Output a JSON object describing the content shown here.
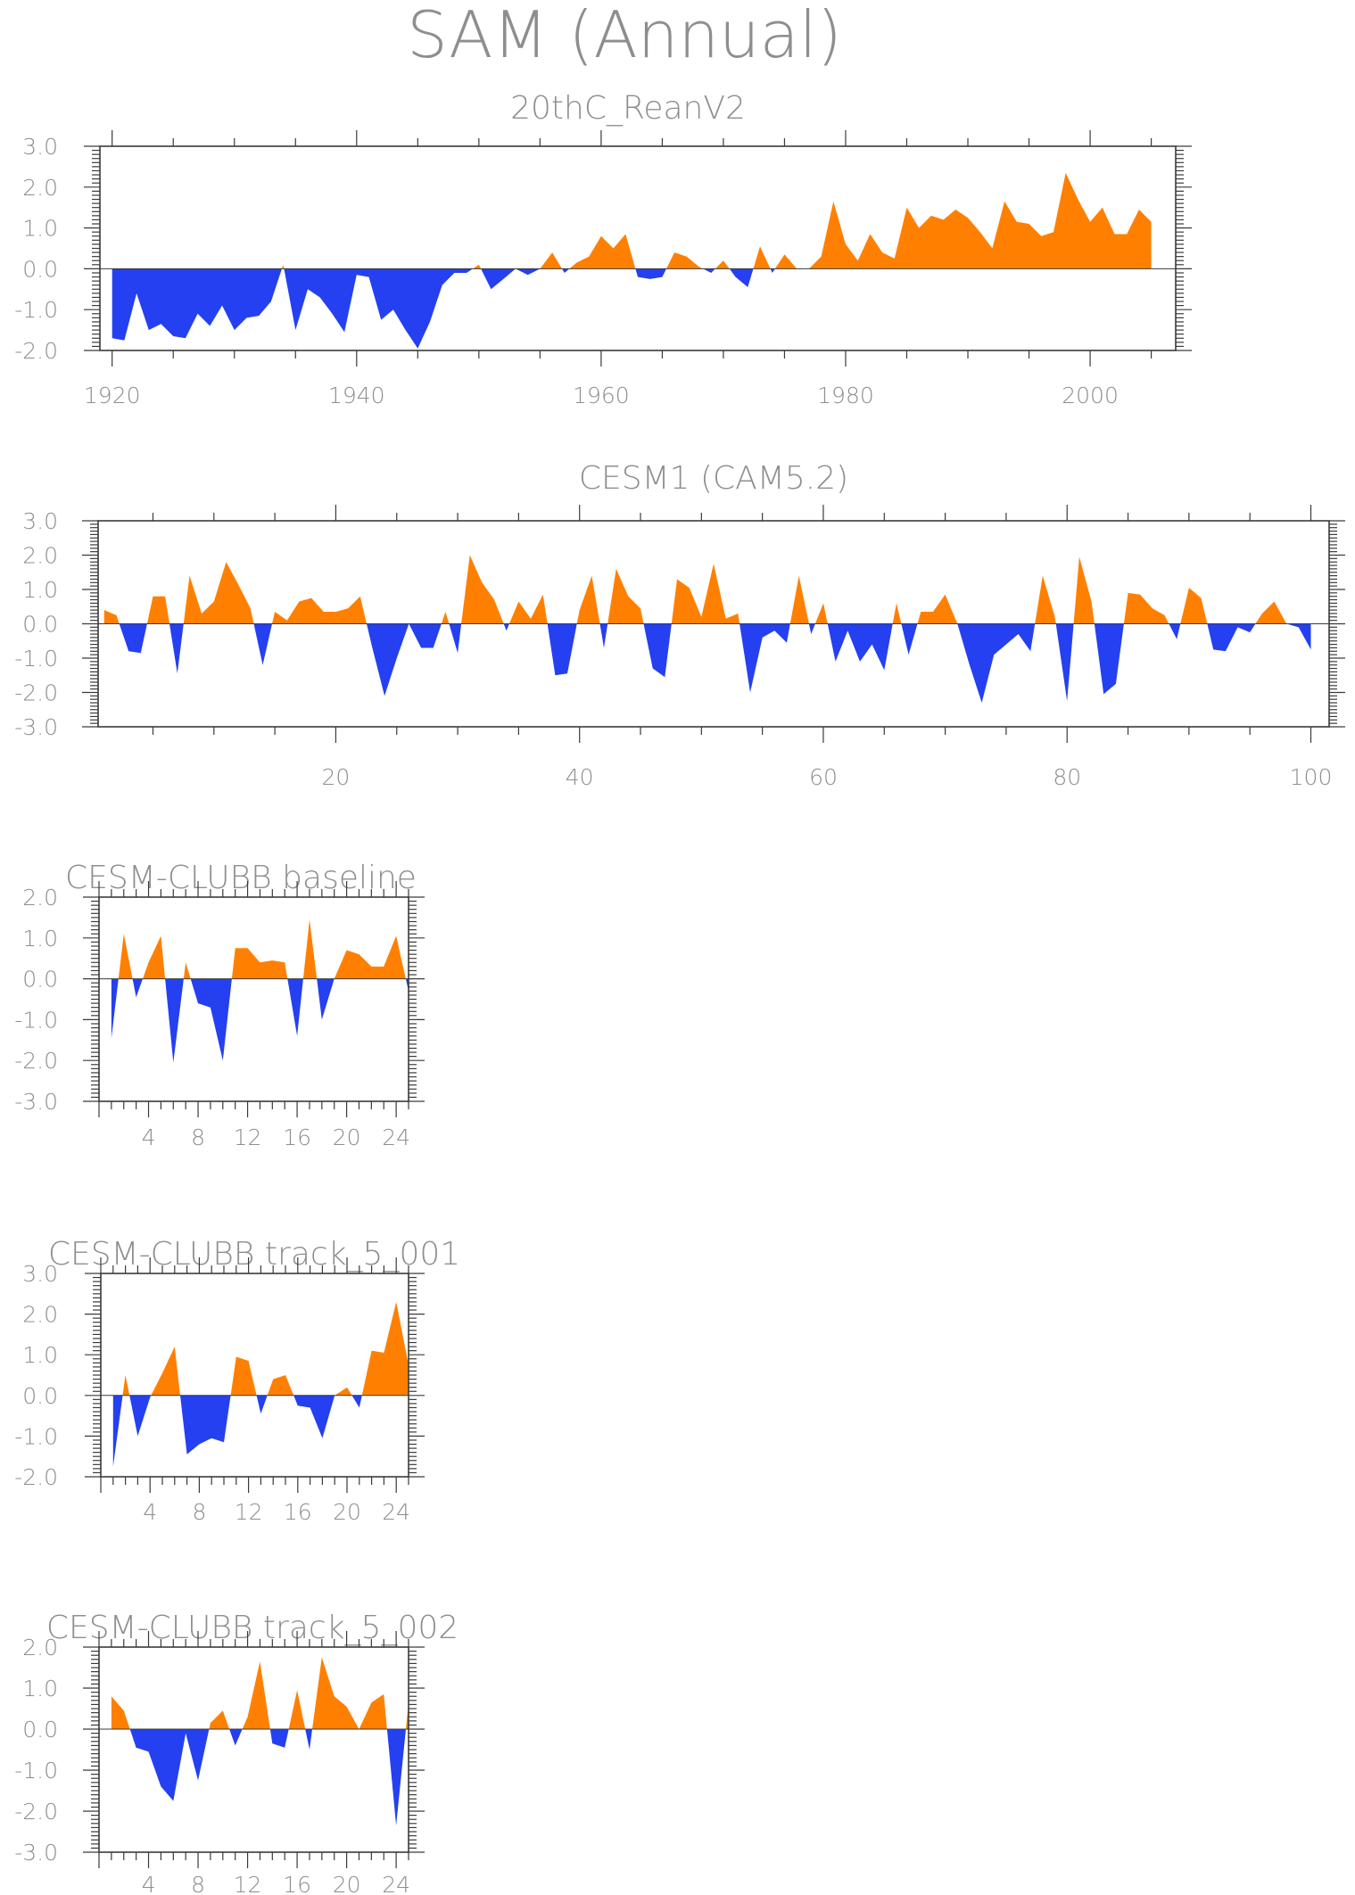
{
  "title": "SAM (Annual)",
  "colors": {
    "positive": "#ff8000",
    "negative": "#2440f0",
    "text": "#8e8e8e",
    "axis": "#3a3a3a"
  },
  "chart_data": [
    {
      "type": "area",
      "title": "20thC_ReanV2",
      "ylim": [
        -2,
        3
      ],
      "yticks": [
        "3.0",
        "2.0",
        "1.0",
        "0.0",
        "-1.0",
        "-2.0"
      ],
      "xlim": [
        1919,
        2007
      ],
      "xticks": [
        "1920",
        "1940",
        "1960",
        "1980",
        "2000"
      ],
      "x": [
        1920,
        1921,
        1922,
        1923,
        1924,
        1925,
        1926,
        1927,
        1928,
        1929,
        1930,
        1931,
        1932,
        1933,
        1934,
        1935,
        1936,
        1937,
        1938,
        1939,
        1940,
        1941,
        1942,
        1943,
        1944,
        1945,
        1946,
        1947,
        1948,
        1949,
        1950,
        1951,
        1952,
        1953,
        1954,
        1955,
        1956,
        1957,
        1958,
        1959,
        1960,
        1961,
        1962,
        1963,
        1964,
        1965,
        1966,
        1967,
        1968,
        1969,
        1970,
        1971,
        1972,
        1973,
        1974,
        1975,
        1976,
        1977,
        1978,
        1979,
        1980,
        1981,
        1982,
        1983,
        1984,
        1985,
        1986,
        1987,
        1988,
        1989,
        1990,
        1991,
        1992,
        1993,
        1994,
        1995,
        1996,
        1997,
        1998,
        1999,
        2000,
        2001,
        2002,
        2003,
        2004,
        2005
      ],
      "values": [
        -1.7,
        -1.75,
        -0.6,
        -1.5,
        -1.35,
        -1.65,
        -1.7,
        -1.1,
        -1.4,
        -0.9,
        -1.5,
        -1.2,
        -1.15,
        -0.8,
        0.1,
        -1.5,
        -0.5,
        -0.7,
        -1.1,
        -1.55,
        -0.15,
        -0.2,
        -1.25,
        -1.0,
        -1.5,
        -1.95,
        -1.3,
        -0.4,
        -0.1,
        -0.1,
        0.1,
        -0.5,
        -0.25,
        0.0,
        -0.15,
        0.0,
        0.4,
        -0.1,
        0.15,
        0.3,
        0.8,
        0.5,
        0.85,
        -0.2,
        -0.25,
        -0.2,
        0.4,
        0.3,
        0.05,
        -0.1,
        0.2,
        -0.2,
        -0.45,
        0.55,
        -0.1,
        0.35,
        0.0,
        0.0,
        0.3,
        1.65,
        0.6,
        0.2,
        0.85,
        0.4,
        0.25,
        1.5,
        1.0,
        1.3,
        1.2,
        1.45,
        1.25,
        0.9,
        0.5,
        1.65,
        1.15,
        1.1,
        0.8,
        0.9,
        2.35,
        1.7,
        1.15,
        1.5,
        0.85,
        0.85,
        1.45,
        1.15
      ]
    },
    {
      "type": "area",
      "title": "CESM1 (CAM5.2)",
      "ylim": [
        -3,
        3
      ],
      "yticks": [
        "3.0",
        "2.0",
        "1.0",
        "0.0",
        "-1.0",
        "-2.0",
        "-3.0"
      ],
      "xlim": [
        0.5,
        101.5
      ],
      "xticks": [
        "20",
        "40",
        "60",
        "80",
        "100"
      ],
      "x": [
        1,
        2,
        3,
        4,
        5,
        6,
        7,
        8,
        9,
        10,
        11,
        12,
        13,
        14,
        15,
        16,
        17,
        18,
        19,
        20,
        21,
        22,
        23,
        24,
        25,
        26,
        27,
        28,
        29,
        30,
        31,
        32,
        33,
        34,
        35,
        36,
        37,
        38,
        39,
        40,
        41,
        42,
        43,
        44,
        45,
        46,
        47,
        48,
        49,
        50,
        51,
        52,
        53,
        54,
        55,
        56,
        57,
        58,
        59,
        60,
        61,
        62,
        63,
        64,
        65,
        66,
        67,
        68,
        69,
        70,
        71,
        72,
        73,
        74,
        75,
        76,
        77,
        78,
        79,
        80,
        81,
        82,
        83,
        84,
        85,
        86,
        87,
        88,
        89,
        90,
        91,
        92,
        93,
        94,
        95,
        96,
        97,
        98,
        99,
        100
      ],
      "values": [
        0.4,
        0.25,
        -0.8,
        -0.85,
        0.8,
        0.8,
        -1.45,
        1.4,
        0.3,
        0.65,
        1.8,
        1.15,
        0.45,
        -1.2,
        0.35,
        0.1,
        0.65,
        0.75,
        0.35,
        0.35,
        0.45,
        0.8,
        -0.7,
        -2.1,
        -1.0,
        0.0,
        -0.7,
        -0.7,
        0.35,
        -0.85,
        2.0,
        1.2,
        0.7,
        -0.2,
        0.65,
        0.15,
        0.85,
        -1.5,
        -1.45,
        0.4,
        1.4,
        -0.7,
        1.6,
        0.8,
        0.45,
        -1.3,
        -1.55,
        1.3,
        1.05,
        0.2,
        1.75,
        0.15,
        0.3,
        -2.0,
        -0.4,
        -0.2,
        -0.55,
        1.4,
        -0.3,
        0.6,
        -1.1,
        -0.2,
        -1.1,
        -0.6,
        -1.35,
        0.6,
        -0.9,
        0.35,
        0.35,
        0.85,
        0.0,
        -1.2,
        -2.3,
        -0.9,
        -0.6,
        -0.3,
        -0.8,
        1.4,
        0.2,
        -2.25,
        1.95,
        0.65,
        -2.05,
        -1.75,
        0.9,
        0.85,
        0.45,
        0.25,
        -0.45,
        1.05,
        0.75,
        -0.75,
        -0.8,
        -0.1,
        -0.25,
        0.3,
        0.65,
        0.0,
        -0.1,
        -0.75
      ]
    },
    {
      "type": "area",
      "title": "CESM-CLUBB baseline",
      "ylim": [
        -3,
        2
      ],
      "yticks": [
        "2.0",
        "1.0",
        "0.0",
        "-1.0",
        "-2.0",
        "-3.0"
      ],
      "xlim": [
        0,
        25
      ],
      "xticks": [
        "4",
        "8",
        "12",
        "16",
        "20",
        "24"
      ],
      "x": [
        1,
        2,
        3,
        4,
        5,
        6,
        7,
        8,
        9,
        10,
        11,
        12,
        13,
        14,
        15,
        16,
        17,
        18,
        19,
        20,
        21,
        22,
        23,
        24,
        25
      ],
      "values": [
        -1.45,
        1.1,
        -0.45,
        0.4,
        1.05,
        -2.05,
        0.4,
        -0.6,
        -0.7,
        -2.0,
        0.75,
        0.75,
        0.4,
        0.45,
        0.4,
        -1.4,
        1.45,
        -1.0,
        0.0,
        0.7,
        0.6,
        0.3,
        0.3,
        1.05,
        -0.3
      ]
    },
    {
      "type": "area",
      "title": "CESM-CLUBB track_5_001",
      "ylim": [
        -2,
        3
      ],
      "yticks": [
        "3.0",
        "2.0",
        "1.0",
        "0.0",
        "-1.0",
        "-2.0"
      ],
      "xlim": [
        0,
        25
      ],
      "xticks": [
        "4",
        "8",
        "12",
        "16",
        "20",
        "24"
      ],
      "x": [
        1,
        2,
        3,
        4,
        5,
        6,
        7,
        8,
        9,
        10,
        11,
        12,
        13,
        14,
        15,
        16,
        17,
        18,
        19,
        20,
        21,
        22,
        23,
        24,
        25
      ],
      "values": [
        -1.75,
        0.5,
        -1.0,
        -0.05,
        0.55,
        1.2,
        -1.45,
        -1.2,
        -1.05,
        -1.15,
        0.95,
        0.85,
        -0.45,
        0.4,
        0.5,
        -0.25,
        -0.3,
        -1.05,
        0.0,
        0.2,
        -0.3,
        1.1,
        1.05,
        2.3,
        0.75
      ]
    },
    {
      "type": "area",
      "title": "CESM-CLUBB track_5_002",
      "ylim": [
        -3,
        2
      ],
      "yticks": [
        "2.0",
        "1.0",
        "0.0",
        "-1.0",
        "-2.0",
        "-3.0"
      ],
      "xlim": [
        0,
        25
      ],
      "xticks": [
        "4",
        "8",
        "12",
        "16",
        "20",
        "24"
      ],
      "x": [
        1,
        2,
        3,
        4,
        5,
        6,
        7,
        8,
        9,
        10,
        11,
        12,
        13,
        14,
        15,
        16,
        17,
        18,
        19,
        20,
        21,
        22,
        23,
        24,
        25
      ],
      "values": [
        0.8,
        0.45,
        -0.45,
        -0.55,
        -1.4,
        -1.75,
        -0.1,
        -1.25,
        0.15,
        0.45,
        -0.4,
        0.3,
        1.65,
        -0.35,
        -0.45,
        0.95,
        -0.5,
        1.75,
        0.8,
        0.55,
        0.0,
        0.65,
        0.85,
        -2.35,
        0.65
      ]
    }
  ]
}
